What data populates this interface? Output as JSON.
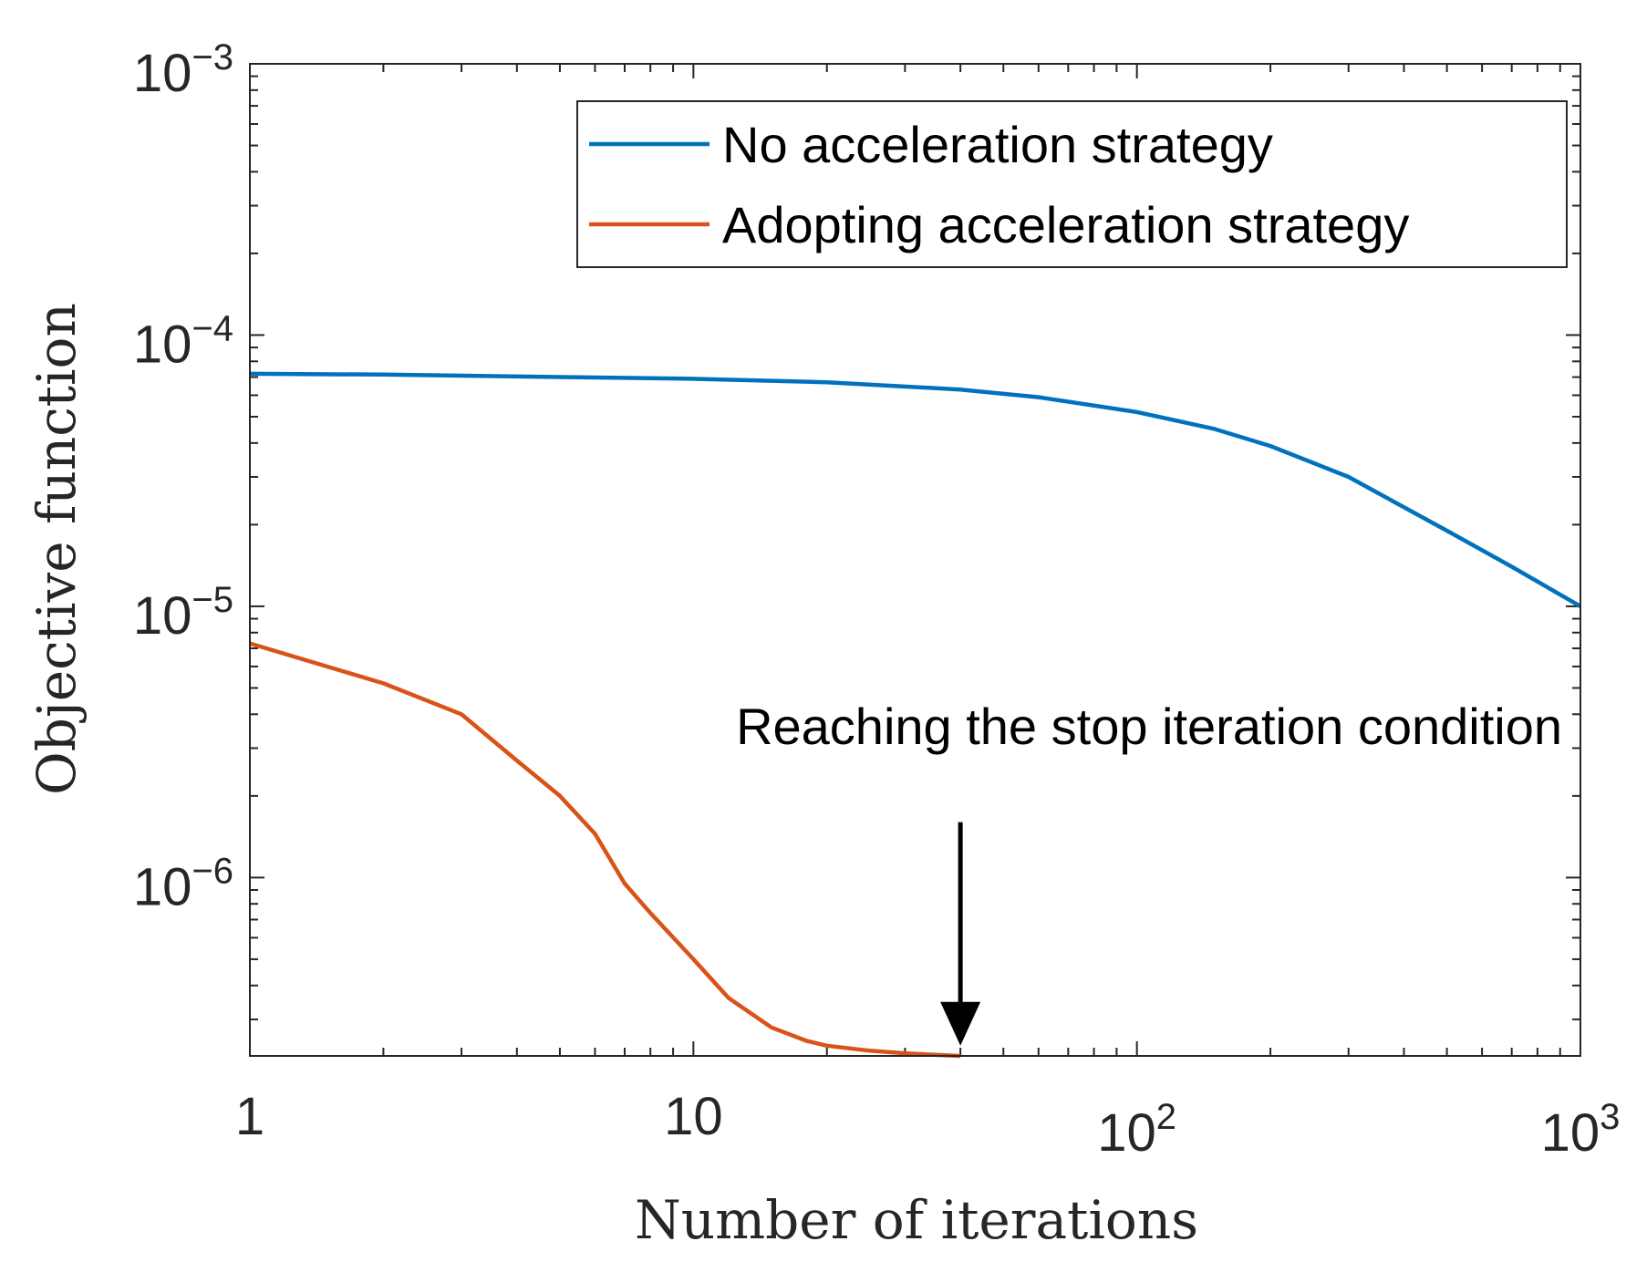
{
  "chart_data": {
    "type": "line",
    "xlabel": "Number of iterations",
    "ylabel": "Objective function",
    "xscale": "log",
    "yscale": "log",
    "xlim": [
      1,
      1000
    ],
    "ylim": [
      2.2e-07,
      0.001
    ],
    "x_ticks": [
      {
        "value": 1,
        "base": "1",
        "exp": ""
      },
      {
        "value": 10,
        "base": "10",
        "exp": ""
      },
      {
        "value": 100,
        "base": "10",
        "exp": "2"
      },
      {
        "value": 1000,
        "base": "10",
        "exp": "3"
      }
    ],
    "y_ticks": [
      {
        "value": 0.001,
        "base": "10",
        "exp": "−3"
      },
      {
        "value": 0.0001,
        "base": "10",
        "exp": "−4"
      },
      {
        "value": 1e-05,
        "base": "10",
        "exp": "−5"
      },
      {
        "value": 1e-06,
        "base": "10",
        "exp": "−6"
      }
    ],
    "legend_position": "top-right",
    "grid": false,
    "series": [
      {
        "name": "No acceleration strategy",
        "color": "#0072BD",
        "x": [
          1,
          2,
          5,
          10,
          20,
          40,
          60,
          100,
          150,
          200,
          300,
          500,
          700,
          1000
        ],
        "y": [
          7.2e-05,
          7.15e-05,
          7e-05,
          6.9e-05,
          6.7e-05,
          6.3e-05,
          5.9e-05,
          5.2e-05,
          4.5e-05,
          3.9e-05,
          3e-05,
          1.9e-05,
          1.4e-05,
          1e-05
        ]
      },
      {
        "name": "Adopting acceleration strategy",
        "color": "#D95319",
        "x": [
          1,
          2,
          3,
          4,
          5,
          6,
          7,
          8,
          10,
          12,
          15,
          18,
          20,
          25,
          30,
          35,
          40
        ],
        "y": [
          7.3e-06,
          5.2e-06,
          4e-06,
          2.7e-06,
          2e-06,
          1.45e-06,
          9.5e-07,
          7.4e-07,
          5e-07,
          3.6e-07,
          2.8e-07,
          2.5e-07,
          2.4e-07,
          2.3e-07,
          2.25e-07,
          2.22e-07,
          2.2e-07
        ]
      }
    ],
    "annotation": {
      "text": "Reaching the stop iteration condition",
      "arrow_x": 40,
      "arrow_from_y": 1.6e-06,
      "arrow_to_y": 2.4e-07
    }
  }
}
